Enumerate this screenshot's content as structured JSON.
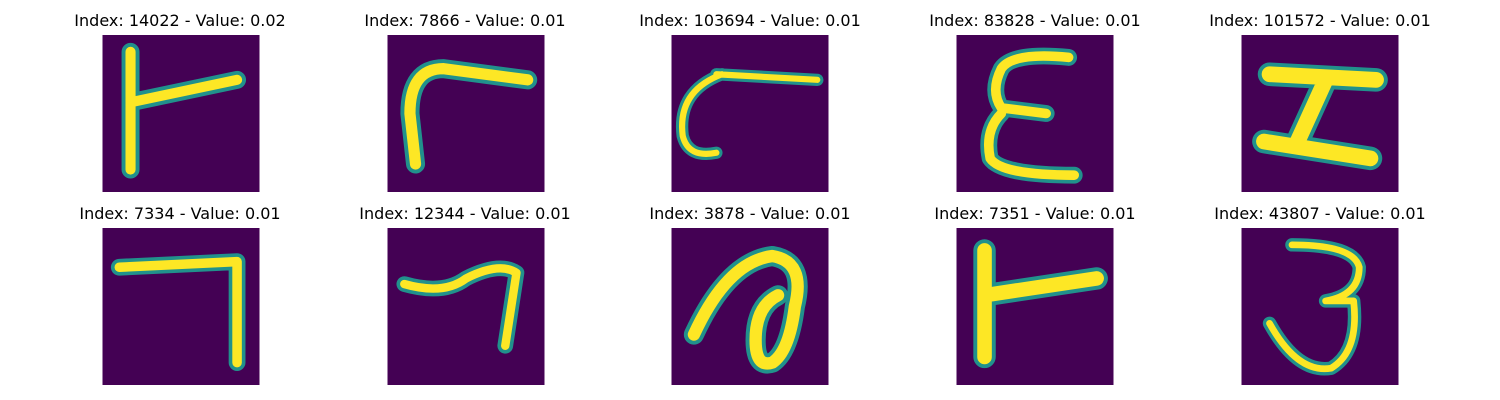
{
  "colors": {
    "background_dark": "#440154",
    "stroke_mid": "#21918c",
    "stroke_bright": "#fde725",
    "edge_green": "#5ec962"
  },
  "panels": [
    {
      "title": "Index: 14022 - Value: 0.02",
      "glyph": "sideways-F"
    },
    {
      "title": "Index: 7866 - Value: 0.01",
      "glyph": "bent-stroke"
    },
    {
      "title": "Index: 103694 - Value: 0.01",
      "glyph": "hook-with-bar"
    },
    {
      "title": "Index: 83828 - Value: 0.01",
      "glyph": "epsilon"
    },
    {
      "title": "Index: 101572 - Value: 0.01",
      "glyph": "Z-shape"
    },
    {
      "title": "Index: 7334 - Value: 0.01",
      "glyph": "seven"
    },
    {
      "title": "Index: 12344 - Value: 0.01",
      "glyph": "seven-wavy"
    },
    {
      "title": "Index: 3878 - Value: 0.01",
      "glyph": "loop-a"
    },
    {
      "title": "Index: 7351 - Value: 0.01",
      "glyph": "sideways-F-bold"
    },
    {
      "title": "Index: 43807 - Value: 0.01",
      "glyph": "three"
    }
  ]
}
